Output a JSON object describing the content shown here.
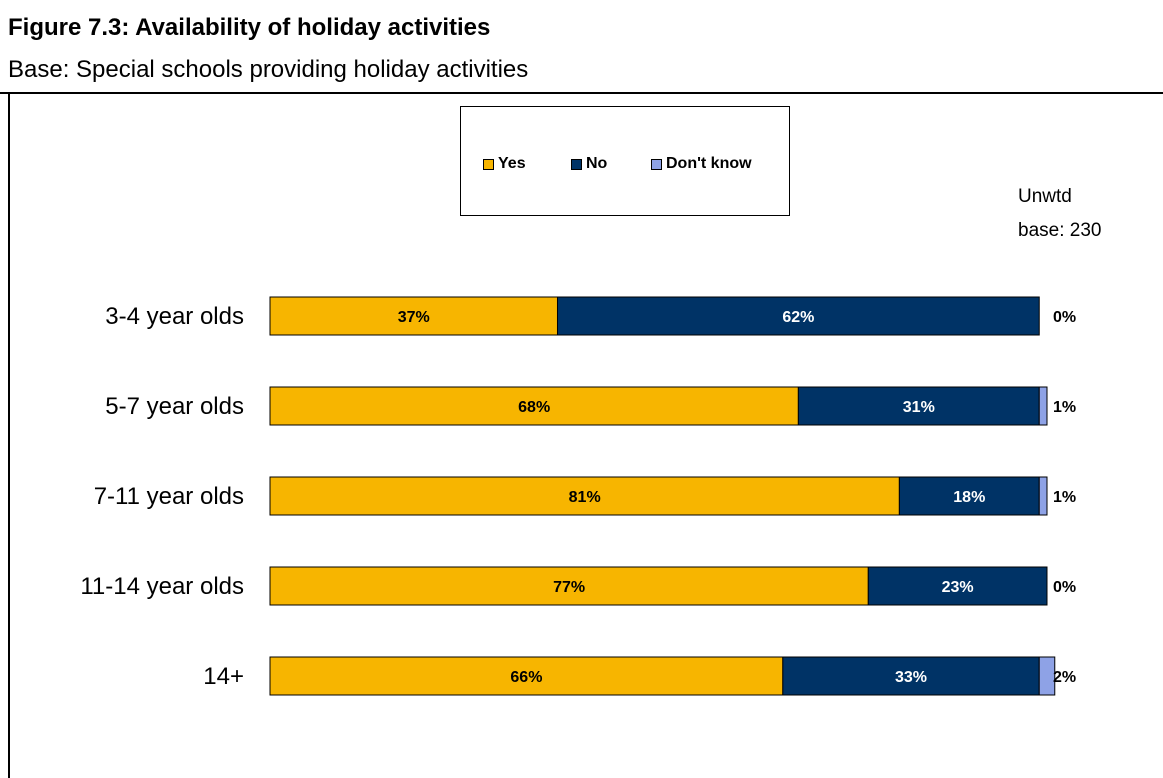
{
  "header": {
    "title": "Figure 7.3: Availability of holiday activities",
    "subtitle": "Base: Special schools providing holiday activities"
  },
  "base_note": {
    "line1": "Unwtd",
    "line2": "base: 230"
  },
  "colors": {
    "yes": "#F7B500",
    "no": "#003366",
    "dont_know": "#8EA2E6"
  },
  "chart_data": {
    "type": "bar",
    "orientation": "horizontal",
    "stacked": true,
    "percent": true,
    "categories": [
      "3-4 year olds",
      "5-7 year olds",
      "7-11 year olds",
      "11-14 year olds",
      "14+"
    ],
    "series": [
      {
        "name": "Yes",
        "values": [
          37,
          68,
          81,
          77,
          66
        ],
        "labels": [
          "37%",
          "68%",
          "81%",
          "77%",
          "66%"
        ]
      },
      {
        "name": "No",
        "values": [
          62,
          31,
          18,
          23,
          33
        ],
        "labels": [
          "62%",
          "31%",
          "18%",
          "23%",
          "33%"
        ]
      },
      {
        "name": "Don't know",
        "values": [
          0,
          1,
          1,
          0,
          2
        ],
        "labels": [
          "0%",
          "1%",
          "1%",
          "0%",
          "2%"
        ]
      }
    ],
    "xlim": [
      0,
      100
    ],
    "grid": false,
    "legend_position": "top"
  }
}
